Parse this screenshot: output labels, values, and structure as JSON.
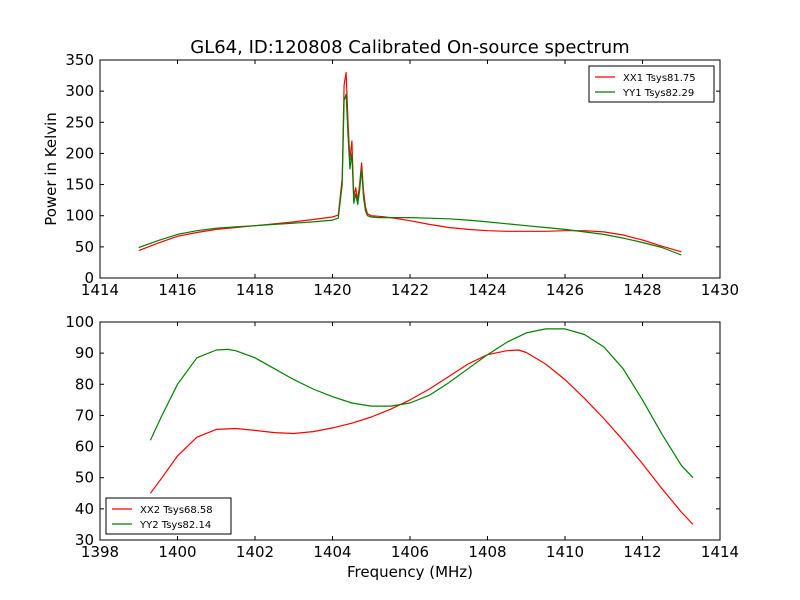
{
  "figure": {
    "title": "GL64, ID:120808 Calibrated On-source spectrum",
    "shared_xlabel": "Frequency (MHz)"
  },
  "chart_data": [
    {
      "type": "line",
      "title": "GL64, ID:120808 Calibrated On-source spectrum",
      "xlabel": "",
      "ylabel": "Power in Kelvin",
      "xlim": [
        1414,
        1430
      ],
      "ylim": [
        0,
        350
      ],
      "xticks": [
        1414,
        1416,
        1418,
        1420,
        1422,
        1424,
        1426,
        1428,
        1430
      ],
      "yticks": [
        0,
        50,
        100,
        150,
        200,
        250,
        300,
        350
      ],
      "grid": false,
      "legend": "top-right",
      "series": [
        {
          "name": "XX1 Tsys81.75",
          "color": "#ff0000",
          "x": [
            1415.0,
            1415.5,
            1416.0,
            1416.5,
            1417.0,
            1417.5,
            1418.0,
            1418.5,
            1419.0,
            1419.5,
            1420.0,
            1420.15,
            1420.25,
            1420.3,
            1420.35,
            1420.4,
            1420.45,
            1420.5,
            1420.55,
            1420.6,
            1420.65,
            1420.7,
            1420.75,
            1420.8,
            1420.85,
            1420.9,
            1421.0,
            1421.2,
            1421.5,
            1422.0,
            1422.5,
            1423.0,
            1423.5,
            1424.0,
            1424.5,
            1425.0,
            1425.5,
            1426.0,
            1426.5,
            1427.0,
            1427.5,
            1428.0,
            1428.5,
            1429.0
          ],
          "y": [
            44,
            56,
            67,
            73,
            78,
            81,
            84,
            87,
            90,
            94,
            98,
            101,
            160,
            310,
            330,
            250,
            190,
            220,
            130,
            145,
            125,
            150,
            185,
            140,
            115,
            103,
            100,
            99,
            97,
            92,
            86,
            81,
            78,
            76,
            75,
            75,
            75,
            76,
            76,
            74,
            69,
            61,
            51,
            42
          ]
        },
        {
          "name": "YY1 Tsys82.29",
          "color": "#008000",
          "x": [
            1415.0,
            1415.5,
            1416.0,
            1416.5,
            1417.0,
            1417.5,
            1418.0,
            1418.5,
            1419.0,
            1419.5,
            1420.0,
            1420.15,
            1420.25,
            1420.3,
            1420.35,
            1420.4,
            1420.45,
            1420.5,
            1420.55,
            1420.6,
            1420.65,
            1420.7,
            1420.75,
            1420.8,
            1420.85,
            1420.9,
            1421.0,
            1421.2,
            1421.5,
            1422.0,
            1422.5,
            1423.0,
            1423.5,
            1424.0,
            1424.5,
            1425.0,
            1425.5,
            1426.0,
            1426.5,
            1427.0,
            1427.5,
            1428.0,
            1428.5,
            1429.0
          ],
          "y": [
            49,
            60,
            70,
            76,
            80,
            82,
            84,
            86,
            88,
            90,
            93,
            96,
            150,
            285,
            295,
            230,
            175,
            200,
            120,
            135,
            118,
            140,
            175,
            130,
            108,
            100,
            98,
            97,
            97,
            97,
            96,
            95,
            93,
            90,
            87,
            84,
            81,
            78,
            74,
            70,
            64,
            57,
            49,
            37
          ]
        }
      ]
    },
    {
      "type": "line",
      "title": "",
      "xlabel": "Frequency (MHz)",
      "ylabel": "",
      "xlim": [
        1398,
        1414
      ],
      "ylim": [
        30,
        100
      ],
      "xticks": [
        1398,
        1400,
        1402,
        1404,
        1406,
        1408,
        1410,
        1412,
        1414
      ],
      "yticks": [
        30,
        40,
        50,
        60,
        70,
        80,
        90,
        100
      ],
      "grid": false,
      "legend": "bottom-left",
      "series": [
        {
          "name": "XX2 Tsys68.58",
          "color": "#ff0000",
          "x": [
            1399.3,
            1399.6,
            1400.0,
            1400.5,
            1401.0,
            1401.5,
            1402.0,
            1402.5,
            1403.0,
            1403.5,
            1404.0,
            1404.5,
            1405.0,
            1405.5,
            1406.0,
            1406.5,
            1407.0,
            1407.5,
            1408.0,
            1408.5,
            1408.8,
            1409.0,
            1409.5,
            1410.0,
            1410.5,
            1411.0,
            1411.5,
            1412.0,
            1412.5,
            1413.0,
            1413.3
          ],
          "y": [
            45,
            50,
            57,
            63,
            65.5,
            65.8,
            65.2,
            64.5,
            64.2,
            64.8,
            66,
            67.5,
            69.5,
            72,
            75,
            78.5,
            82.5,
            86.5,
            89.5,
            90.8,
            91,
            90.2,
            86.5,
            81.5,
            75.5,
            69,
            62,
            54.5,
            46.5,
            39,
            35
          ]
        },
        {
          "name": "YY2 Tsys82.14",
          "color": "#008000",
          "x": [
            1399.3,
            1399.6,
            1400.0,
            1400.5,
            1401.0,
            1401.3,
            1401.5,
            1402.0,
            1402.5,
            1403.0,
            1403.5,
            1404.0,
            1404.5,
            1405.0,
            1405.5,
            1406.0,
            1406.5,
            1407.0,
            1407.5,
            1408.0,
            1408.5,
            1409.0,
            1409.5,
            1410.0,
            1410.5,
            1411.0,
            1411.5,
            1412.0,
            1412.5,
            1413.0,
            1413.3
          ],
          "y": [
            62,
            70,
            80,
            88.5,
            91,
            91.2,
            90.8,
            88.5,
            85,
            81.5,
            78.5,
            76,
            74,
            73,
            73,
            74,
            76.5,
            80.5,
            85,
            89.5,
            93.5,
            96.5,
            97.8,
            97.8,
            96,
            92,
            85,
            75,
            64,
            54,
            50
          ]
        }
      ]
    }
  ]
}
